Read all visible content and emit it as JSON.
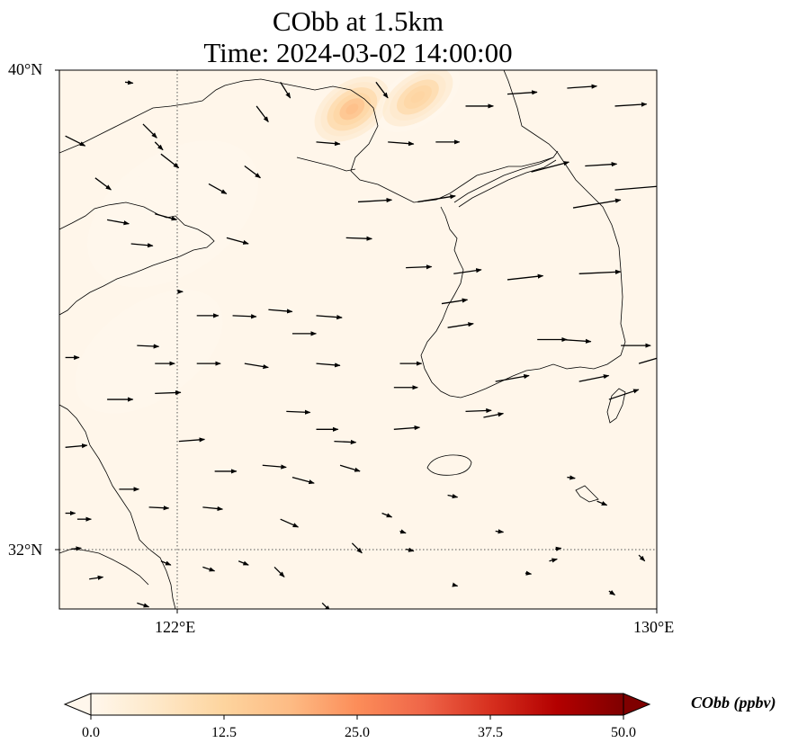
{
  "title": {
    "line1": "CObb at 1.5km",
    "line2": "Time: 2024-03-02 14:00:00"
  },
  "axes": {
    "lon_labels": [
      "122°E",
      "130°E"
    ],
    "lat_labels": [
      "40°N",
      "32°N"
    ],
    "lon_range": [
      120,
      130
    ],
    "lat_range": [
      31,
      40
    ],
    "gridlines": {
      "lon": [
        122
      ],
      "lat": [
        32
      ],
      "style": "dotted"
    }
  },
  "colorbar": {
    "label": "CObb (ppbv)",
    "ticks": [
      "0.0",
      "12.5",
      "25.0",
      "37.5",
      "50.0"
    ],
    "range": [
      0,
      50
    ],
    "extend": "both",
    "colormap": "OrRd",
    "colors": [
      "#fff7ec",
      "#fee8c8",
      "#fdd49e",
      "#fdbb84",
      "#fc8d59",
      "#ef6548",
      "#d7301f",
      "#b30000",
      "#7f0000"
    ]
  },
  "field_hotspots": [
    {
      "lon": 124.9,
      "lat": 39.35,
      "value": 24,
      "spread": [
        0.7,
        0.45
      ]
    },
    {
      "lon": 126.0,
      "lat": 39.55,
      "value": 17,
      "spread": [
        0.8,
        0.45
      ]
    },
    {
      "lon": 121.9,
      "lat": 37.6,
      "value": 3,
      "spread": [
        1.6,
        1.0
      ]
    },
    {
      "lon": 121.5,
      "lat": 35.3,
      "value": 3,
      "spread": [
        1.4,
        0.8
      ]
    }
  ],
  "wind_vectors": [
    {
      "lon": 120.1,
      "lat": 38.9,
      "u": 1.0,
      "v": -0.5
    },
    {
      "lon": 120.6,
      "lat": 38.2,
      "u": 0.8,
      "v": -0.6
    },
    {
      "lon": 120.8,
      "lat": 37.5,
      "u": 1.1,
      "v": -0.2
    },
    {
      "lon": 121.2,
      "lat": 37.1,
      "u": 1.1,
      "v": -0.1
    },
    {
      "lon": 121.6,
      "lat": 37.6,
      "u": 1.1,
      "v": -0.3
    },
    {
      "lon": 121.7,
      "lat": 38.6,
      "u": 0.9,
      "v": -0.7
    },
    {
      "lon": 121.4,
      "lat": 39.1,
      "u": 0.7,
      "v": -0.7
    },
    {
      "lon": 122.5,
      "lat": 38.1,
      "u": 0.9,
      "v": -0.5
    },
    {
      "lon": 123.1,
      "lat": 38.4,
      "u": 0.8,
      "v": -0.6
    },
    {
      "lon": 122.8,
      "lat": 37.2,
      "u": 1.1,
      "v": -0.3
    },
    {
      "lon": 123.3,
      "lat": 39.4,
      "u": 0.6,
      "v": -0.8
    },
    {
      "lon": 123.7,
      "lat": 39.8,
      "u": 0.5,
      "v": -0.8
    },
    {
      "lon": 125.3,
      "lat": 39.8,
      "u": 0.6,
      "v": -0.8
    },
    {
      "lon": 124.3,
      "lat": 38.8,
      "u": 1.2,
      "v": -0.1
    },
    {
      "lon": 125.5,
      "lat": 38.8,
      "u": 1.3,
      "v": -0.1
    },
    {
      "lon": 126.3,
      "lat": 38.8,
      "u": 1.2,
      "v": 0.0
    },
    {
      "lon": 126.8,
      "lat": 39.4,
      "u": 1.4,
      "v": 0.0
    },
    {
      "lon": 127.5,
      "lat": 39.6,
      "u": 1.5,
      "v": 0.1
    },
    {
      "lon": 128.5,
      "lat": 39.7,
      "u": 1.5,
      "v": 0.1
    },
    {
      "lon": 128.8,
      "lat": 38.4,
      "u": 1.6,
      "v": 0.1
    },
    {
      "lon": 129.3,
      "lat": 39.4,
      "u": 1.6,
      "v": 0.1
    },
    {
      "lon": 128.6,
      "lat": 37.7,
      "u": 2.4,
      "v": 0.4
    },
    {
      "lon": 129.3,
      "lat": 38.0,
      "u": 2.4,
      "v": 0.2
    },
    {
      "lon": 127.9,
      "lat": 38.3,
      "u": 1.9,
      "v": 0.5
    },
    {
      "lon": 125.0,
      "lat": 37.8,
      "u": 1.7,
      "v": 0.1
    },
    {
      "lon": 126.0,
      "lat": 37.8,
      "u": 1.9,
      "v": 0.3
    },
    {
      "lon": 124.8,
      "lat": 37.2,
      "u": 1.3,
      "v": -0.05
    },
    {
      "lon": 125.8,
      "lat": 36.7,
      "u": 1.3,
      "v": 0.05
    },
    {
      "lon": 126.4,
      "lat": 36.1,
      "u": 1.3,
      "v": 0.2
    },
    {
      "lon": 126.5,
      "lat": 35.7,
      "u": 1.3,
      "v": 0.2
    },
    {
      "lon": 126.6,
      "lat": 36.6,
      "u": 1.4,
      "v": 0.2
    },
    {
      "lon": 127.5,
      "lat": 36.5,
      "u": 1.8,
      "v": 0.2
    },
    {
      "lon": 128.7,
      "lat": 36.6,
      "u": 2.1,
      "v": 0.1
    },
    {
      "lon": 128.0,
      "lat": 35.5,
      "u": 1.5,
      "v": 0.0
    },
    {
      "lon": 128.4,
      "lat": 35.5,
      "u": 1.5,
      "v": -0.1
    },
    {
      "lon": 129.4,
      "lat": 35.4,
      "u": 1.5,
      "v": 0.0
    },
    {
      "lon": 129.7,
      "lat": 35.1,
      "u": 1.7,
      "v": 0.5
    },
    {
      "lon": 129.2,
      "lat": 34.5,
      "u": 1.5,
      "v": 0.5
    },
    {
      "lon": 128.7,
      "lat": 34.8,
      "u": 1.5,
      "v": 0.3
    },
    {
      "lon": 127.3,
      "lat": 34.8,
      "u": 1.7,
      "v": 0.3
    },
    {
      "lon": 127.1,
      "lat": 34.2,
      "u": 1.0,
      "v": 0.2
    },
    {
      "lon": 126.8,
      "lat": 34.3,
      "u": 1.3,
      "v": 0.05
    },
    {
      "lon": 125.6,
      "lat": 34.0,
      "u": 1.3,
      "v": 0.1
    },
    {
      "lon": 125.6,
      "lat": 34.7,
      "u": 1.2,
      "v": 0.0
    },
    {
      "lon": 125.7,
      "lat": 35.1,
      "u": 1.1,
      "v": 0.0
    },
    {
      "lon": 124.3,
      "lat": 34.0,
      "u": 1.1,
      "v": 0.0
    },
    {
      "lon": 124.6,
      "lat": 33.8,
      "u": 1.1,
      "v": -0.05
    },
    {
      "lon": 124.7,
      "lat": 33.4,
      "u": 1.0,
      "v": -0.3
    },
    {
      "lon": 123.9,
      "lat": 35.6,
      "u": 1.2,
      "v": 0.0
    },
    {
      "lon": 124.3,
      "lat": 35.1,
      "u": 1.2,
      "v": -0.1
    },
    {
      "lon": 123.8,
      "lat": 34.3,
      "u": 1.2,
      "v": -0.05
    },
    {
      "lon": 122.3,
      "lat": 35.1,
      "u": 1.2,
      "v": 0.0
    },
    {
      "lon": 123.1,
      "lat": 35.1,
      "u": 1.2,
      "v": -0.2
    },
    {
      "lon": 122.3,
      "lat": 35.9,
      "u": 1.1,
      "v": 0.0
    },
    {
      "lon": 122.9,
      "lat": 35.9,
      "u": 1.2,
      "v": -0.05
    },
    {
      "lon": 123.5,
      "lat": 36.0,
      "u": 1.2,
      "v": -0.1
    },
    {
      "lon": 124.3,
      "lat": 35.9,
      "u": 1.3,
      "v": -0.1
    },
    {
      "lon": 121.3,
      "lat": 35.4,
      "u": 1.1,
      "v": -0.05
    },
    {
      "lon": 121.6,
      "lat": 35.1,
      "u": 1.0,
      "v": 0.0
    },
    {
      "lon": 120.1,
      "lat": 35.2,
      "u": 0.7,
      "v": 0.0
    },
    {
      "lon": 120.8,
      "lat": 34.5,
      "u": 1.3,
      "v": 0.0
    },
    {
      "lon": 121.6,
      "lat": 34.6,
      "u": 1.3,
      "v": 0.05
    },
    {
      "lon": 122.0,
      "lat": 33.8,
      "u": 1.3,
      "v": 0.1
    },
    {
      "lon": 120.1,
      "lat": 33.7,
      "u": 1.1,
      "v": 0.1
    },
    {
      "lon": 122.6,
      "lat": 33.3,
      "u": 1.1,
      "v": 0.0
    },
    {
      "lon": 123.4,
      "lat": 33.4,
      "u": 1.2,
      "v": -0.1
    },
    {
      "lon": 123.9,
      "lat": 33.2,
      "u": 1.1,
      "v": -0.3
    },
    {
      "lon": 121.0,
      "lat": 33.0,
      "u": 1.0,
      "v": 0.0
    },
    {
      "lon": 121.5,
      "lat": 32.7,
      "u": 1.0,
      "v": -0.05
    },
    {
      "lon": 122.4,
      "lat": 32.7,
      "u": 1.0,
      "v": -0.1
    },
    {
      "lon": 123.7,
      "lat": 32.5,
      "u": 0.9,
      "v": -0.4
    },
    {
      "lon": 120.1,
      "lat": 32.6,
      "u": 0.5,
      "v": 0.0
    },
    {
      "lon": 120.2,
      "lat": 32.0,
      "u": 0.5,
      "v": 0.05
    },
    {
      "lon": 120.3,
      "lat": 32.5,
      "u": 0.7,
      "v": 0.0
    },
    {
      "lon": 125.4,
      "lat": 32.6,
      "u": 0.5,
      "v": -0.2
    },
    {
      "lon": 125.7,
      "lat": 32.3,
      "u": 0.3,
      "v": -0.1
    },
    {
      "lon": 124.9,
      "lat": 32.1,
      "u": 0.5,
      "v": -0.5
    },
    {
      "lon": 125.8,
      "lat": 32.0,
      "u": 0.4,
      "v": -0.1
    },
    {
      "lon": 126.5,
      "lat": 32.9,
      "u": 0.5,
      "v": -0.1
    },
    {
      "lon": 127.3,
      "lat": 32.3,
      "u": 0.4,
      "v": -0.05
    },
    {
      "lon": 128.5,
      "lat": 33.2,
      "u": 0.4,
      "v": -0.05
    },
    {
      "lon": 129.0,
      "lat": 32.8,
      "u": 0.5,
      "v": -0.2
    },
    {
      "lon": 128.2,
      "lat": 31.8,
      "u": 0.4,
      "v": 0.1
    },
    {
      "lon": 128.3,
      "lat": 32.0,
      "u": 0.3,
      "v": 0.05
    },
    {
      "lon": 127.8,
      "lat": 31.6,
      "u": 0.3,
      "v": -0.05
    },
    {
      "lon": 123.0,
      "lat": 31.8,
      "u": 0.5,
      "v": -0.2
    },
    {
      "lon": 123.6,
      "lat": 31.7,
      "u": 0.5,
      "v": -0.5
    },
    {
      "lon": 124.4,
      "lat": 31.1,
      "u": 0.4,
      "v": -0.4
    },
    {
      "lon": 121.7,
      "lat": 31.8,
      "u": 0.5,
      "v": -0.2
    },
    {
      "lon": 122.4,
      "lat": 31.7,
      "u": 0.6,
      "v": -0.2
    },
    {
      "lon": 120.5,
      "lat": 31.5,
      "u": 0.7,
      "v": 0.1
    },
    {
      "lon": 121.3,
      "lat": 31.1,
      "u": 0.6,
      "v": -0.2
    },
    {
      "lon": 126.6,
      "lat": 31.4,
      "u": 0.2,
      "v": -0.05
    },
    {
      "lon": 129.2,
      "lat": 31.3,
      "u": 0.3,
      "v": -0.2
    },
    {
      "lon": 129.7,
      "lat": 31.9,
      "u": 0.3,
      "v": -0.3
    },
    {
      "lon": 121.1,
      "lat": 39.8,
      "u": 0.4,
      "v": -0.05
    },
    {
      "lon": 121.6,
      "lat": 38.8,
      "u": 0.4,
      "v": -0.4
    },
    {
      "lon": 122.0,
      "lat": 36.3,
      "u": 0.2,
      "v": 0.0
    }
  ]
}
